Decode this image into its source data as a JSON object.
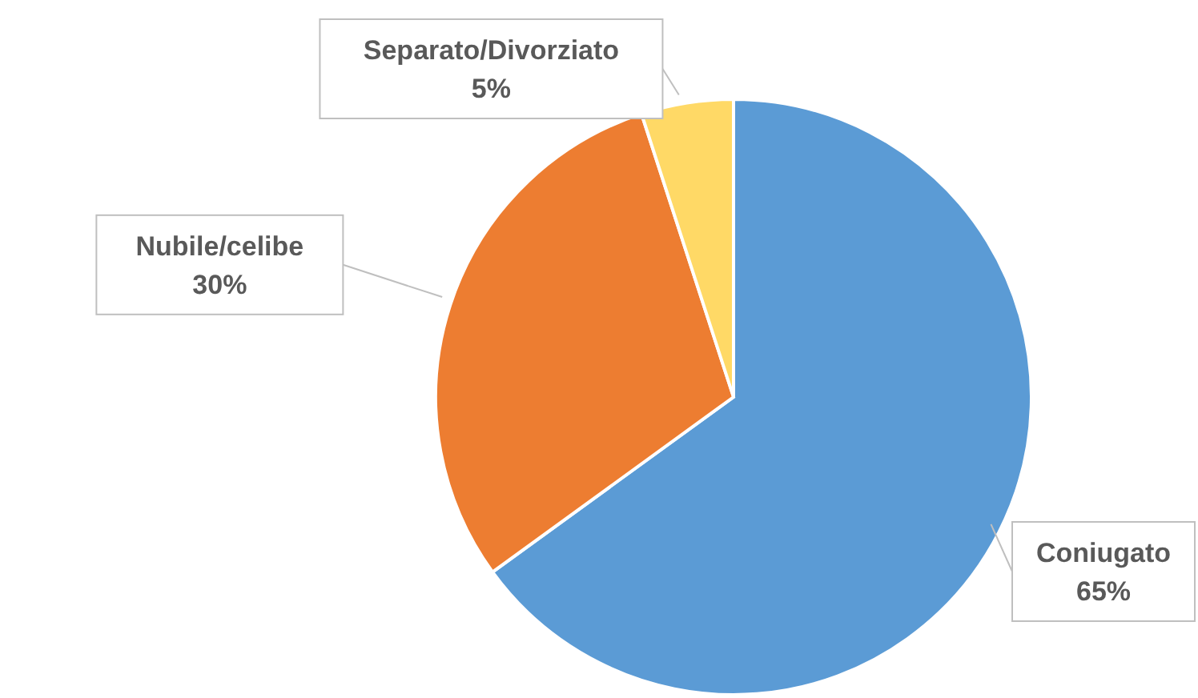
{
  "chart_data": {
    "type": "pie",
    "categories": [
      "Coniugato",
      "Nubile/celibe",
      "Separato/Divorziato"
    ],
    "values": [
      65,
      30,
      5
    ],
    "colors": [
      "#5b9bd5",
      "#ed7d31",
      "#ffd966"
    ],
    "value_labels": [
      "65%",
      "30%",
      "5%"
    ]
  }
}
